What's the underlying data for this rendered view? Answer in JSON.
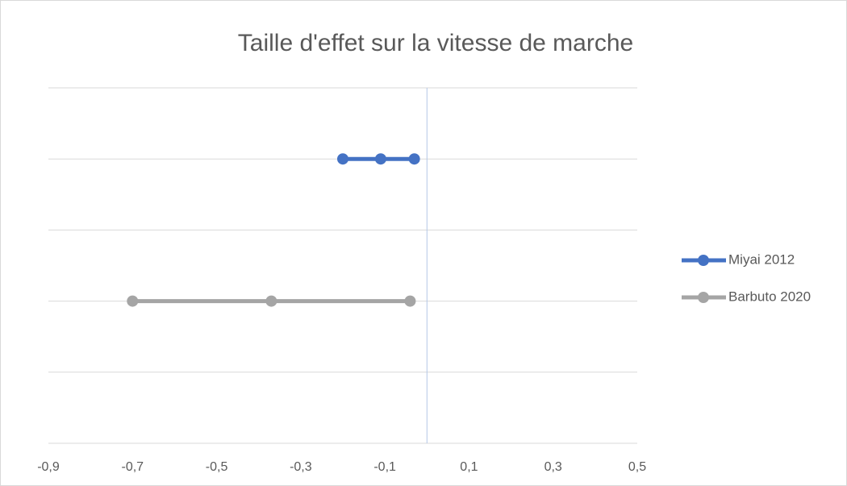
{
  "chart_data": {
    "type": "scatter",
    "title": "Taille d'effet sur la vitesse de marche",
    "xlim": [
      -0.9,
      0.5
    ],
    "xticks": [
      {
        "value": -0.9,
        "label": "-0,9"
      },
      {
        "value": -0.7,
        "label": "-0,7"
      },
      {
        "value": -0.5,
        "label": "-0,5"
      },
      {
        "value": -0.3,
        "label": "-0,3"
      },
      {
        "value": -0.1,
        "label": "-0,1"
      },
      {
        "value": 0.1,
        "label": "0,1"
      },
      {
        "value": 0.3,
        "label": "0,3"
      },
      {
        "value": 0.5,
        "label": "0,5"
      }
    ],
    "ylim": [
      0,
      2.5
    ],
    "yticks": [
      0,
      0.5,
      1,
      1.5,
      2,
      2.5
    ],
    "grid": true,
    "legend": "right",
    "series": [
      {
        "name": "Miyai 2012",
        "color": "#4472c4",
        "x": [
          -0.2,
          -0.11,
          -0.03
        ],
        "values": [
          2,
          2,
          2
        ]
      },
      {
        "name": "Barbuto 2020",
        "color": "#a5a5a5",
        "x": [
          -0.7,
          -0.37,
          -0.04
        ],
        "values": [
          1,
          1,
          1
        ]
      }
    ]
  }
}
